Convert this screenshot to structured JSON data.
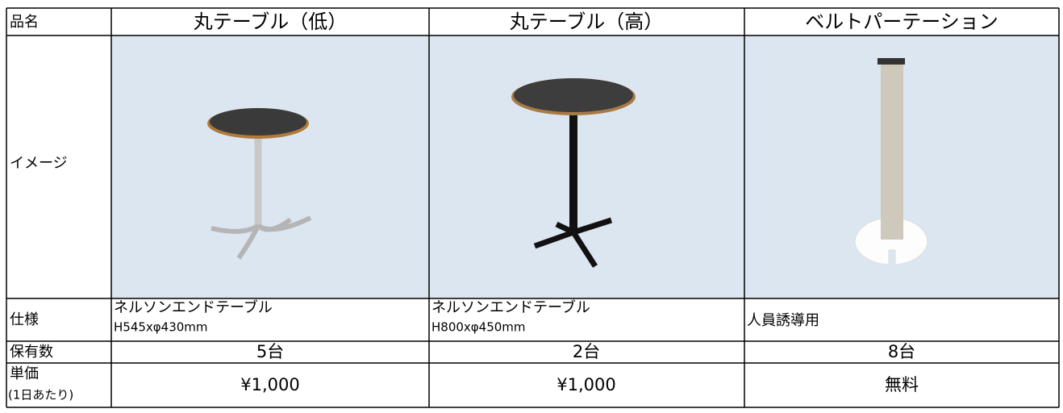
{
  "table": {
    "columns": [
      "品名",
      "丸テーブル（低）",
      "丸テーブル（高）",
      "ベルトパーテーション"
    ],
    "image_label": "イメージ",
    "spec": {
      "label": "仕様",
      "cells": [
        [
          "ネルソンエンドテーブル",
          "H545xφ430mm"
        ],
        [
          "ネルソンエンドテーブル",
          "H800xφ450mm"
        ],
        [
          "人員誘導用"
        ]
      ]
    },
    "stock": {
      "label": "保有数",
      "cells": [
        "5台",
        "2台",
        "8台"
      ]
    },
    "price": {
      "label": [
        "単価",
        "(1日あたり)"
      ],
      "cells": [
        "¥1,000",
        "¥1,000",
        "無料"
      ]
    }
  }
}
